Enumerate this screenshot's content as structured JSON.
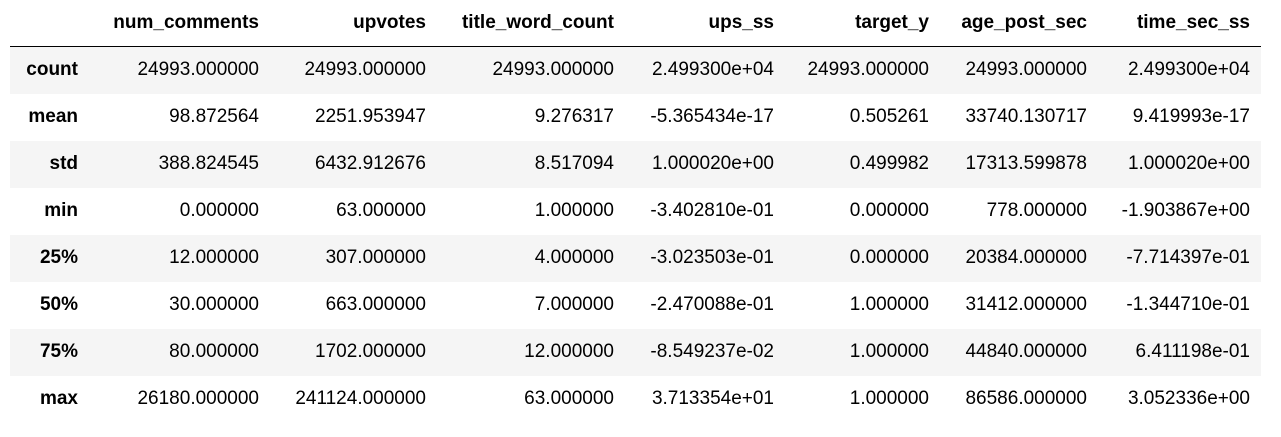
{
  "table": {
    "index_header": "",
    "columns": [
      "num_comments",
      "upvotes",
      "title_word_count",
      "ups_ss",
      "target_y",
      "age_post_sec",
      "time_sec_ss"
    ],
    "rows": [
      {
        "label": "count",
        "cells": [
          "24993.000000",
          "24993.000000",
          "24993.000000",
          "2.499300e+04",
          "24993.000000",
          "24993.000000",
          "2.499300e+04"
        ]
      },
      {
        "label": "mean",
        "cells": [
          "98.872564",
          "2251.953947",
          "9.276317",
          "-5.365434e-17",
          "0.505261",
          "33740.130717",
          "9.419993e-17"
        ]
      },
      {
        "label": "std",
        "cells": [
          "388.824545",
          "6432.912676",
          "8.517094",
          "1.000020e+00",
          "0.499982",
          "17313.599878",
          "1.000020e+00"
        ]
      },
      {
        "label": "min",
        "cells": [
          "0.000000",
          "63.000000",
          "1.000000",
          "-3.402810e-01",
          "0.000000",
          "778.000000",
          "-1.903867e+00"
        ]
      },
      {
        "label": "25%",
        "cells": [
          "12.000000",
          "307.000000",
          "4.000000",
          "-3.023503e-01",
          "0.000000",
          "20384.000000",
          "-7.714397e-01"
        ]
      },
      {
        "label": "50%",
        "cells": [
          "30.000000",
          "663.000000",
          "7.000000",
          "-2.470088e-01",
          "1.000000",
          "31412.000000",
          "-1.344710e-01"
        ]
      },
      {
        "label": "75%",
        "cells": [
          "80.000000",
          "1702.000000",
          "12.000000",
          "-8.549237e-02",
          "1.000000",
          "44840.000000",
          "6.411198e-01"
        ]
      },
      {
        "label": "max",
        "cells": [
          "26180.000000",
          "241124.000000",
          "63.000000",
          "3.713354e+01",
          "1.000000",
          "86586.000000",
          "3.052336e+00"
        ]
      }
    ]
  },
  "colors": {
    "header_border": "#000000",
    "stripe_odd": "#f5f5f5",
    "stripe_even": "#ffffff",
    "text": "#000000"
  }
}
